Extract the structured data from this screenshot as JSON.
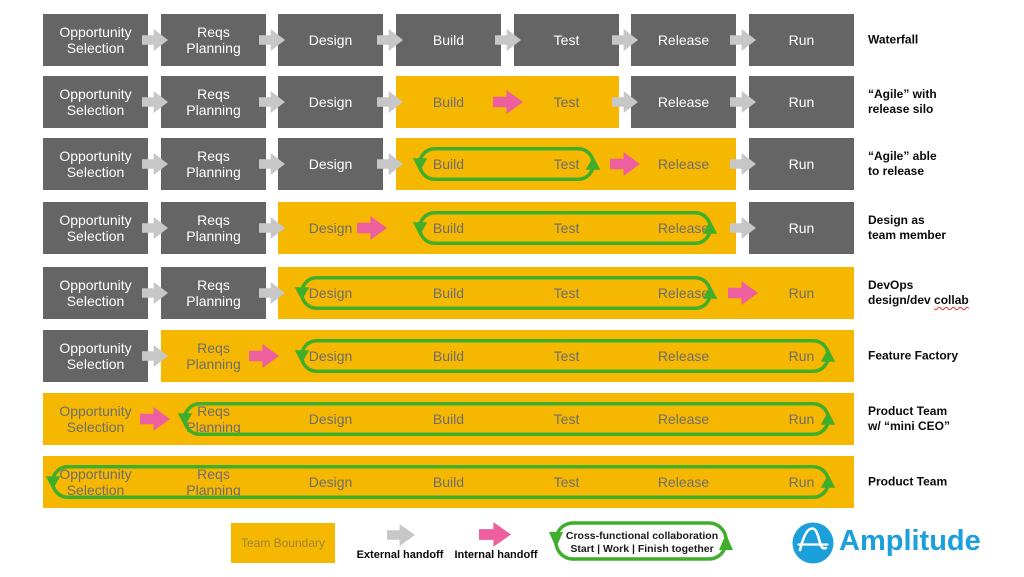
{
  "colors": {
    "gray_box": "#656565",
    "team_yellow": "#F5B700",
    "external_arrow_gray": "#C7C7C7",
    "internal_arrow_pink": "#EE5FA0",
    "loop_green": "#3FAE2A",
    "brand_blue": "#1CA0DB",
    "stage_text_on_gray": "#FFFFFF",
    "stage_text_on_yellow": "#6E6E6E",
    "team_boundary_text": "#9D8638",
    "row_label_text": "#0A0A0A"
  },
  "stage_lines": [
    [
      "Opportunity",
      "Selection"
    ],
    [
      "Reqs",
      "Planning"
    ],
    [
      "Design"
    ],
    [
      "Build"
    ],
    [
      "Test"
    ],
    [
      "Release"
    ],
    [
      "Run"
    ]
  ],
  "rows": [
    {
      "label_lines": [
        "Waterfall"
      ],
      "team_boundary": null,
      "handoffs": [
        "external",
        "external",
        "external",
        "external",
        "external",
        "external"
      ],
      "collab_loop": null
    },
    {
      "label_lines": [
        "“Agile” with",
        "release silo"
      ],
      "team_boundary": [
        3,
        4
      ],
      "handoffs": [
        "external",
        "external",
        "external",
        "internal",
        "external",
        "external"
      ],
      "collab_loop": null
    },
    {
      "label_lines": [
        "“Agile” able",
        "to release"
      ],
      "team_boundary": [
        3,
        5
      ],
      "handoffs": [
        "external",
        "external",
        "external",
        null,
        "internal",
        "external"
      ],
      "collab_loop": [
        3,
        4
      ]
    },
    {
      "label_lines": [
        "Design as",
        "team member"
      ],
      "team_boundary": [
        2,
        5
      ],
      "handoffs": [
        "external",
        "external",
        "internal",
        null,
        null,
        "external"
      ],
      "collab_loop": [
        3,
        5
      ]
    },
    {
      "label_lines": [
        "DevOps",
        "design/dev collab"
      ],
      "underline_word": "collab",
      "team_boundary": [
        2,
        6
      ],
      "handoffs": [
        "external",
        "external",
        null,
        null,
        null,
        "internal"
      ],
      "collab_loop": [
        2,
        5
      ]
    },
    {
      "label_lines": [
        "Feature Factory"
      ],
      "team_boundary": [
        1,
        6
      ],
      "handoffs": [
        "external",
        "internal",
        null,
        null,
        null,
        null
      ],
      "collab_loop": [
        2,
        6
      ]
    },
    {
      "label_lines": [
        "Product Team",
        "w/ “mini CEO”"
      ],
      "team_boundary": [
        0,
        6
      ],
      "handoffs": [
        "internal",
        null,
        null,
        null,
        null,
        null
      ],
      "collab_loop": [
        1,
        6
      ]
    },
    {
      "label_lines": [
        "Product Team"
      ],
      "team_boundary": [
        0,
        6
      ],
      "handoffs": [
        null,
        null,
        null,
        null,
        null,
        null
      ],
      "collab_loop": [
        0,
        6
      ]
    }
  ],
  "legend": {
    "team_boundary_label": "Team Boundary",
    "external_handoff_label": "External handoff",
    "internal_handoff_label": "Internal handoff",
    "collab_line1": "Cross-functional collaboration",
    "collab_line2": "Start | Work | Finish together"
  },
  "brand": {
    "name": "Amplitude"
  }
}
